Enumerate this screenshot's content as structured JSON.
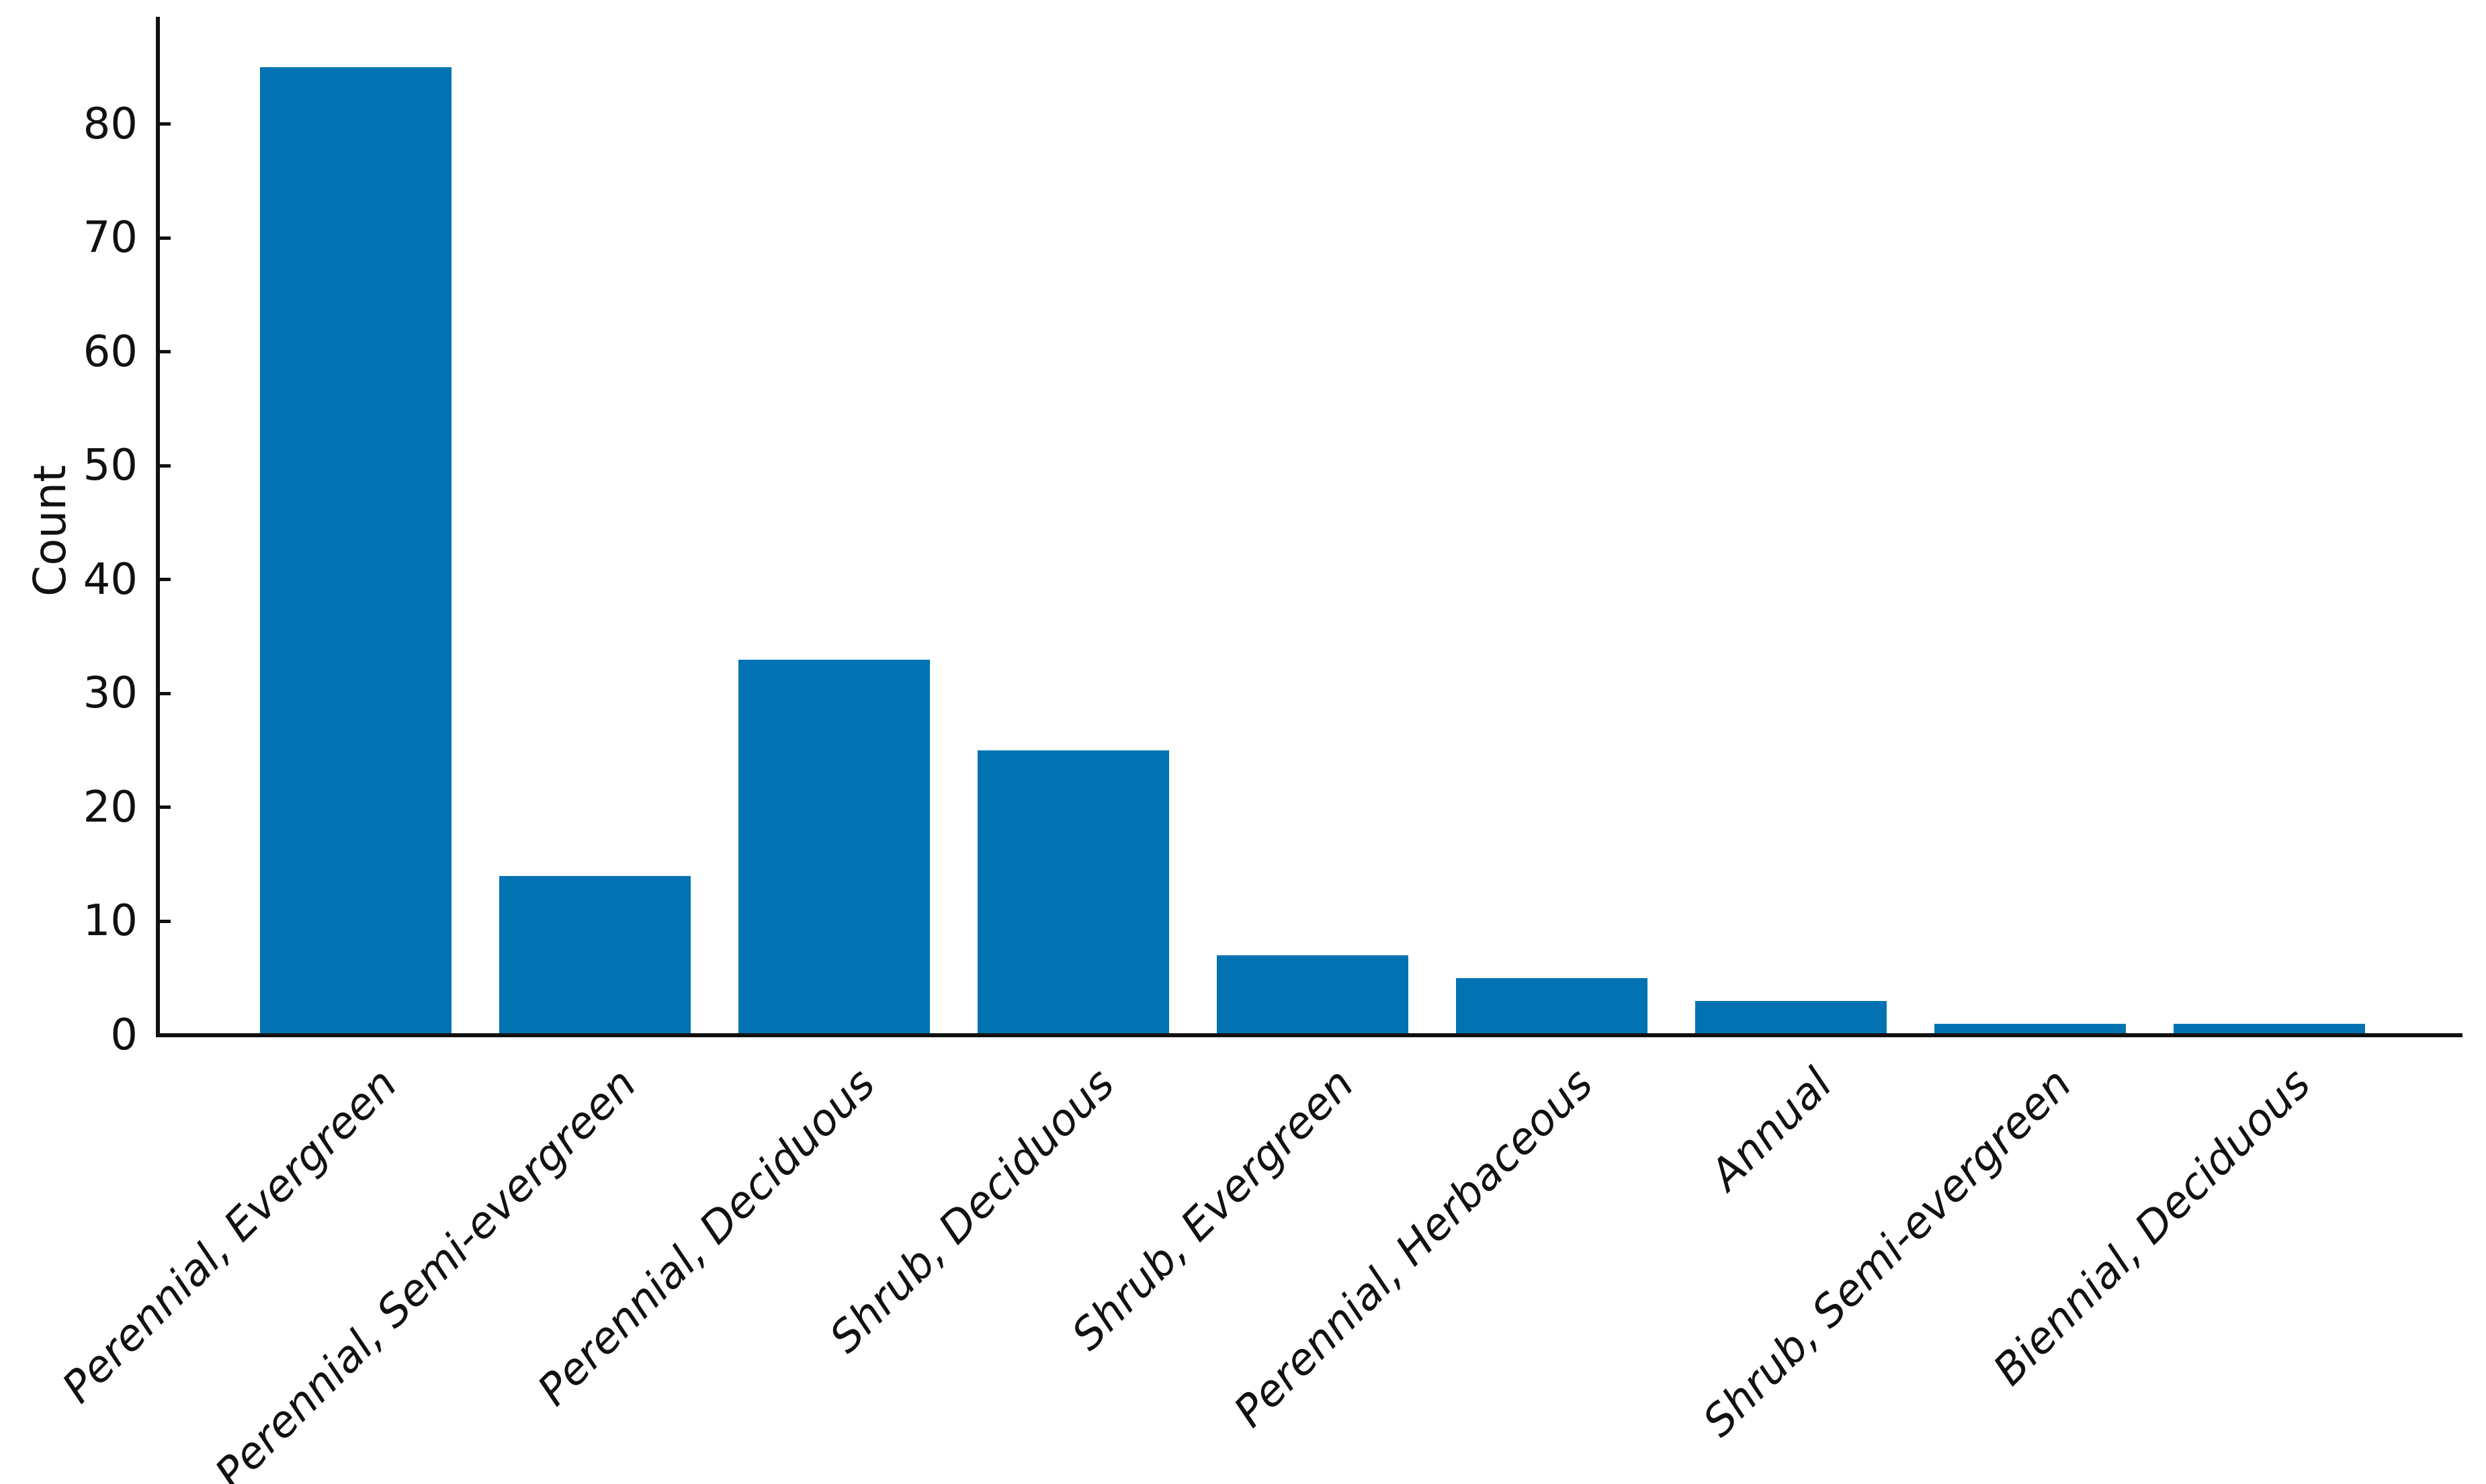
{
  "chart_data": {
    "type": "bar",
    "title": "",
    "xlabel": "",
    "ylabel": "Count",
    "categories": [
      "Perennial, Evergreen",
      "Perennial, Semi-evergreen",
      "Perennial, Deciduous",
      "Shrub, Deciduous",
      "Shrub, Evergreen",
      "Perennial, Herbaceous",
      "Annual",
      "Shrub, Semi-evergreen",
      "Biennial, Deciduous"
    ],
    "values": [
      85,
      14,
      33,
      25,
      7,
      5,
      3,
      1,
      1
    ],
    "yticks": [
      0,
      10,
      20,
      30,
      40,
      50,
      60,
      70,
      80
    ],
    "ylim": [
      0,
      89
    ],
    "grid": false,
    "legend": "none",
    "bar_color": "#0173b2",
    "axis_color": "#111111",
    "tick_direction": "in",
    "xtick_label_style": "italic, rotated 45deg",
    "spines_visible": [
      "left",
      "bottom"
    ]
  }
}
